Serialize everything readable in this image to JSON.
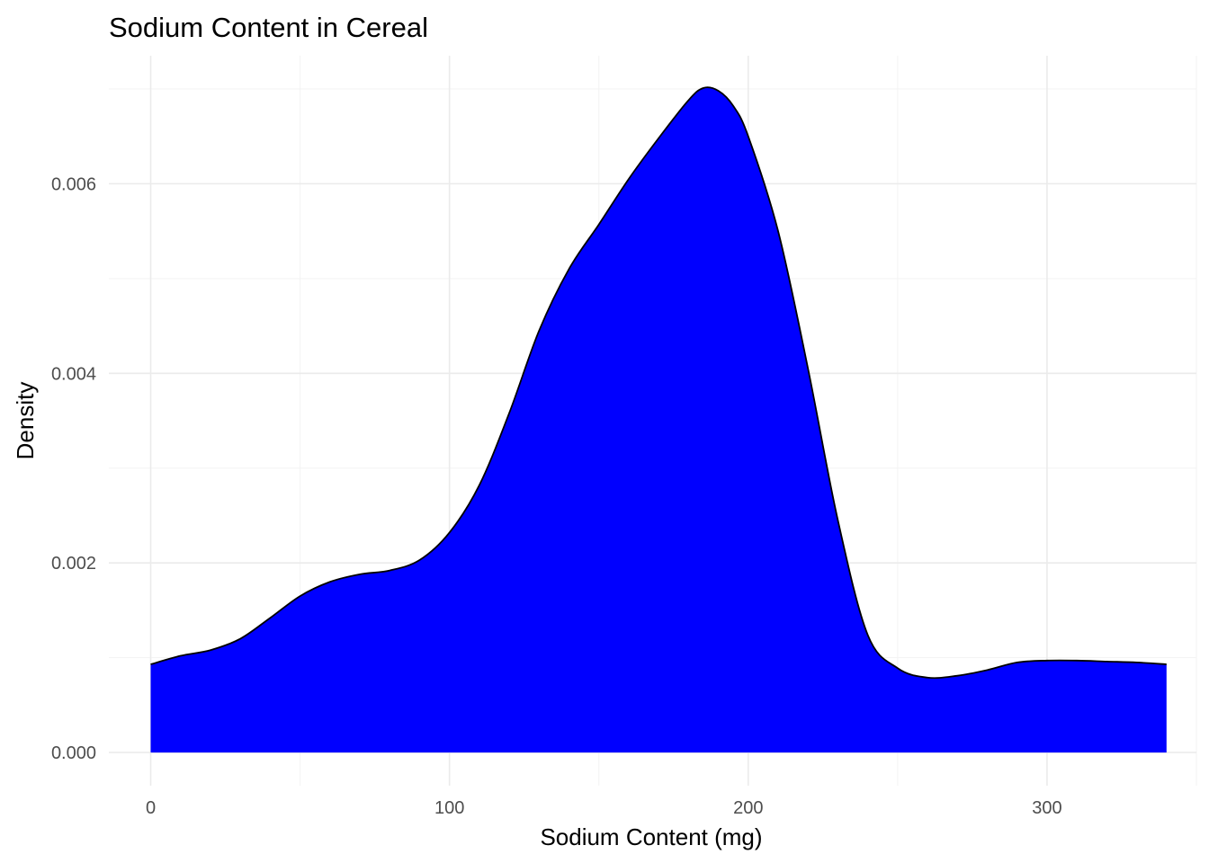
{
  "chart_data": {
    "type": "area",
    "title": "Sodium Content in Cereal",
    "xlabel": "Sodium Content (mg)",
    "ylabel": "Density",
    "xlim": [
      -14,
      350
    ],
    "ylim": [
      -0.00035,
      0.00735
    ],
    "x_ticks": [
      0,
      100,
      200,
      300
    ],
    "x_tick_labels": [
      "0",
      "100",
      "200",
      "300"
    ],
    "x_minor_ticks": [
      50,
      150,
      250,
      350
    ],
    "y_ticks": [
      0,
      0.002,
      0.004,
      0.006
    ],
    "y_tick_labels": [
      "0.000",
      "0.002",
      "0.004",
      "0.006"
    ],
    "y_minor_ticks": [
      0.001,
      0.003,
      0.005,
      0.007
    ],
    "grid": true,
    "legend": "none",
    "fill_color": "#0000ff",
    "outline_color": "#000000",
    "series": [
      {
        "x": [
          0,
          10,
          20,
          30,
          40,
          50,
          60,
          70,
          80,
          90,
          100,
          110,
          120,
          130,
          140,
          150,
          160,
          170,
          180,
          185,
          190,
          195,
          200,
          210,
          220,
          230,
          240,
          250,
          260,
          270,
          280,
          290,
          300,
          310,
          320,
          330,
          340
        ],
        "y": [
          0.00093,
          0.00102,
          0.00108,
          0.0012,
          0.00142,
          0.00165,
          0.0018,
          0.00188,
          0.00192,
          0.00203,
          0.00232,
          0.00282,
          0.00358,
          0.00445,
          0.0051,
          0.00557,
          0.00605,
          0.00648,
          0.00688,
          0.00701,
          0.00698,
          0.00682,
          0.0065,
          0.0055,
          0.00405,
          0.00245,
          0.00124,
          0.00089,
          0.00079,
          0.00081,
          0.00087,
          0.00095,
          0.00097,
          0.00097,
          0.00096,
          0.00095,
          0.00093
        ]
      }
    ]
  }
}
